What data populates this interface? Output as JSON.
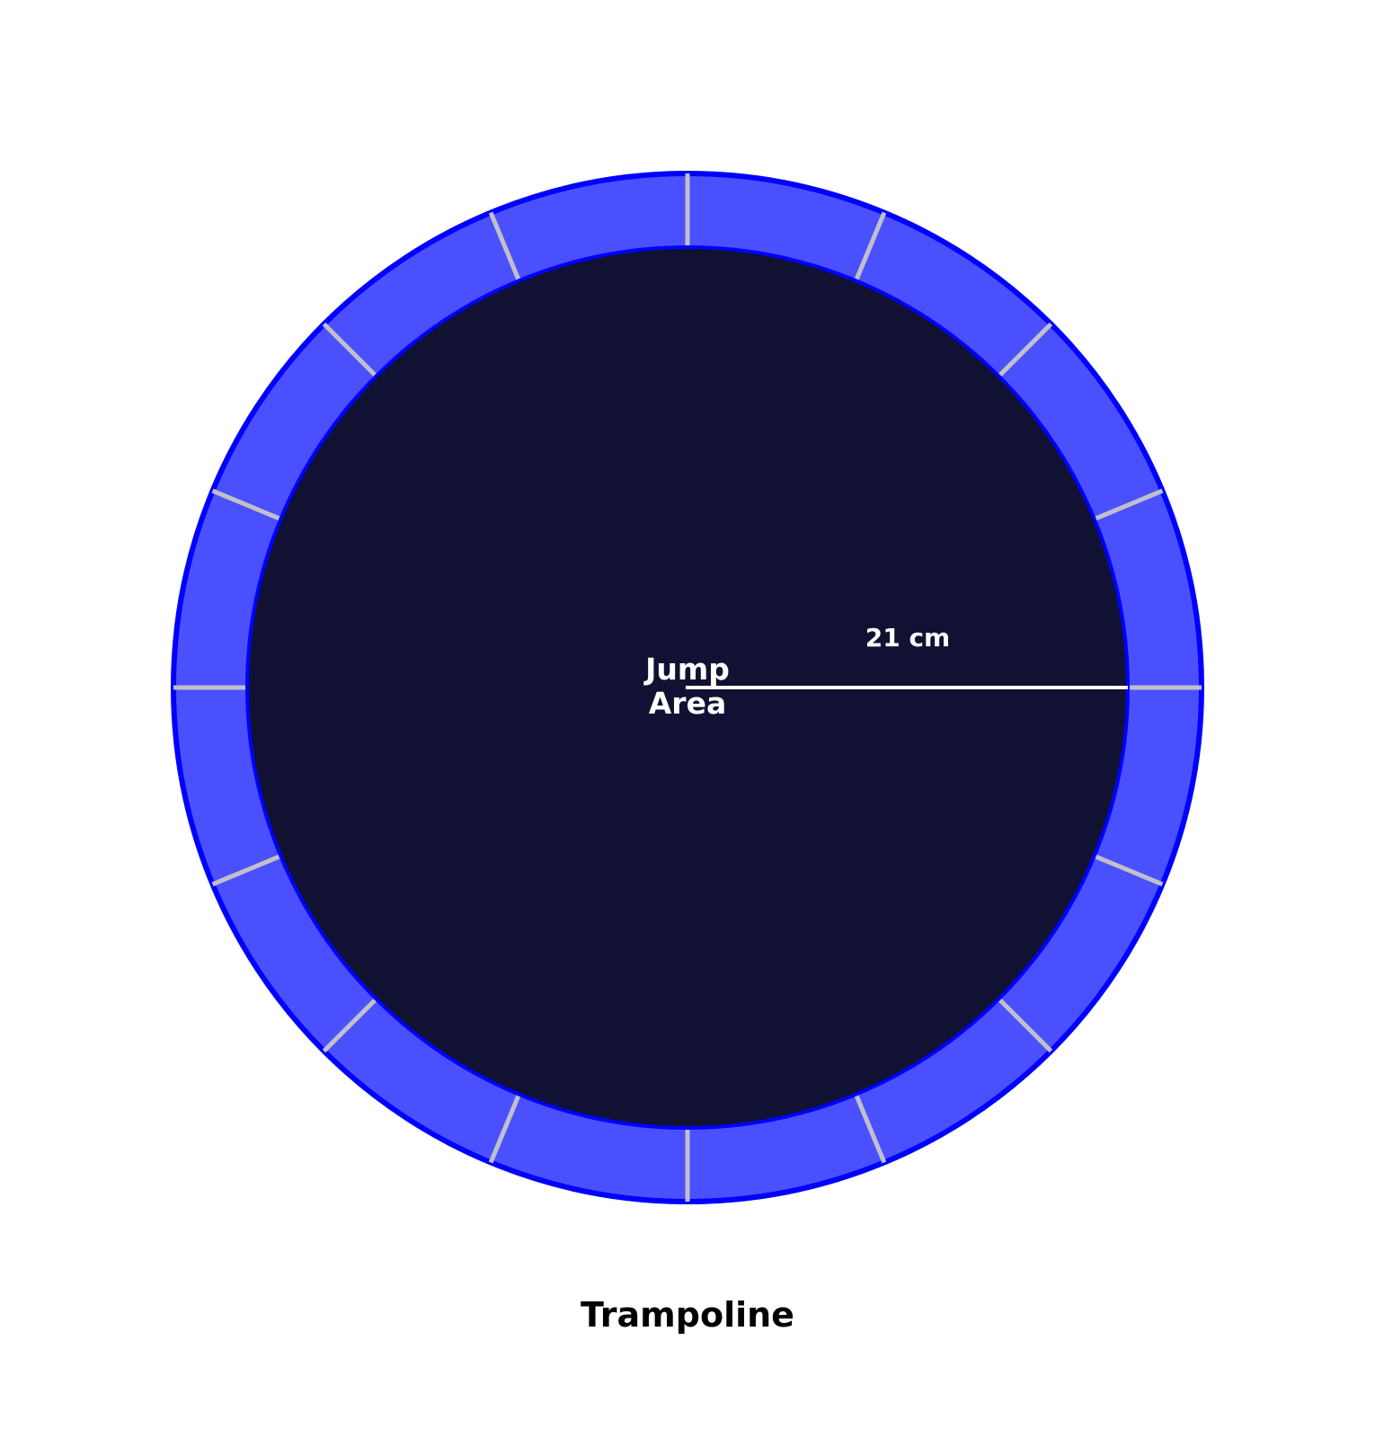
{
  "diagram": {
    "title": "Trampoline",
    "center_label": [
      "Jump",
      "Area"
    ],
    "radius_label": "21 cm",
    "spoke_count": 16,
    "colors": {
      "pad_fill": "#4b50ff",
      "pad_edge": "#0000ff",
      "mat_fill": "#111133",
      "spoke": "#c0c0c8",
      "label": "#ffffff",
      "title": "#000000"
    }
  }
}
